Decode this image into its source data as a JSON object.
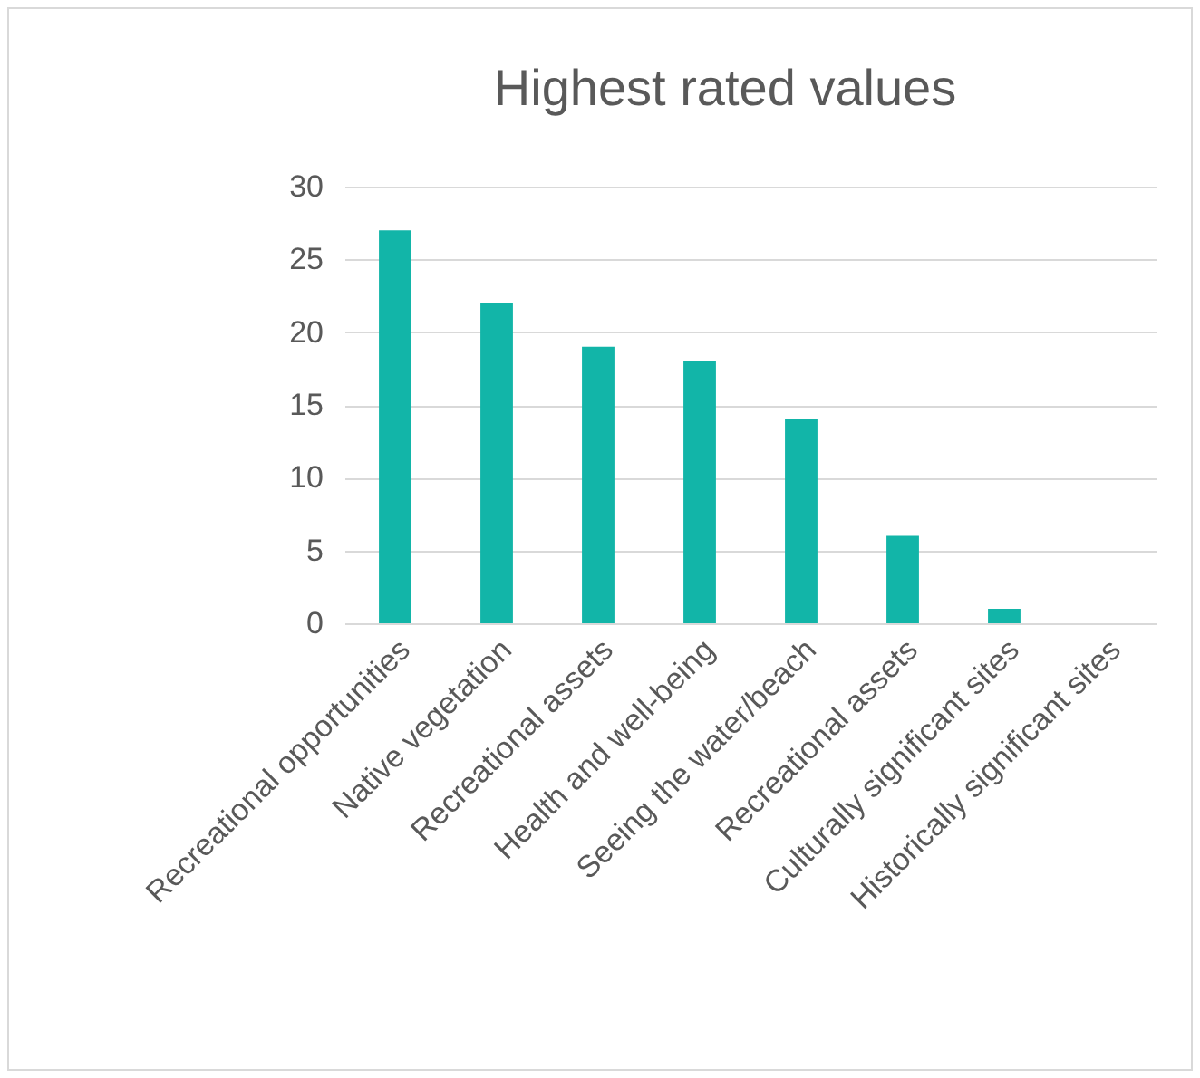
{
  "chart_data": {
    "type": "bar",
    "title": "Highest rated values",
    "categories": [
      "Recreational opportunities",
      "Native vegetation",
      "Recreational assets",
      "Health and well-being",
      "Seeing the water/beach",
      "Recreational assets",
      "Culturally significant sites",
      "Historically significant sites"
    ],
    "values": [
      27,
      22,
      19,
      18,
      14,
      6,
      1,
      0
    ],
    "color": "#12b5a8",
    "ylim": [
      0,
      30
    ],
    "yticks": [
      0,
      5,
      10,
      15,
      20,
      25,
      30
    ],
    "grid": "y",
    "legend": false
  }
}
